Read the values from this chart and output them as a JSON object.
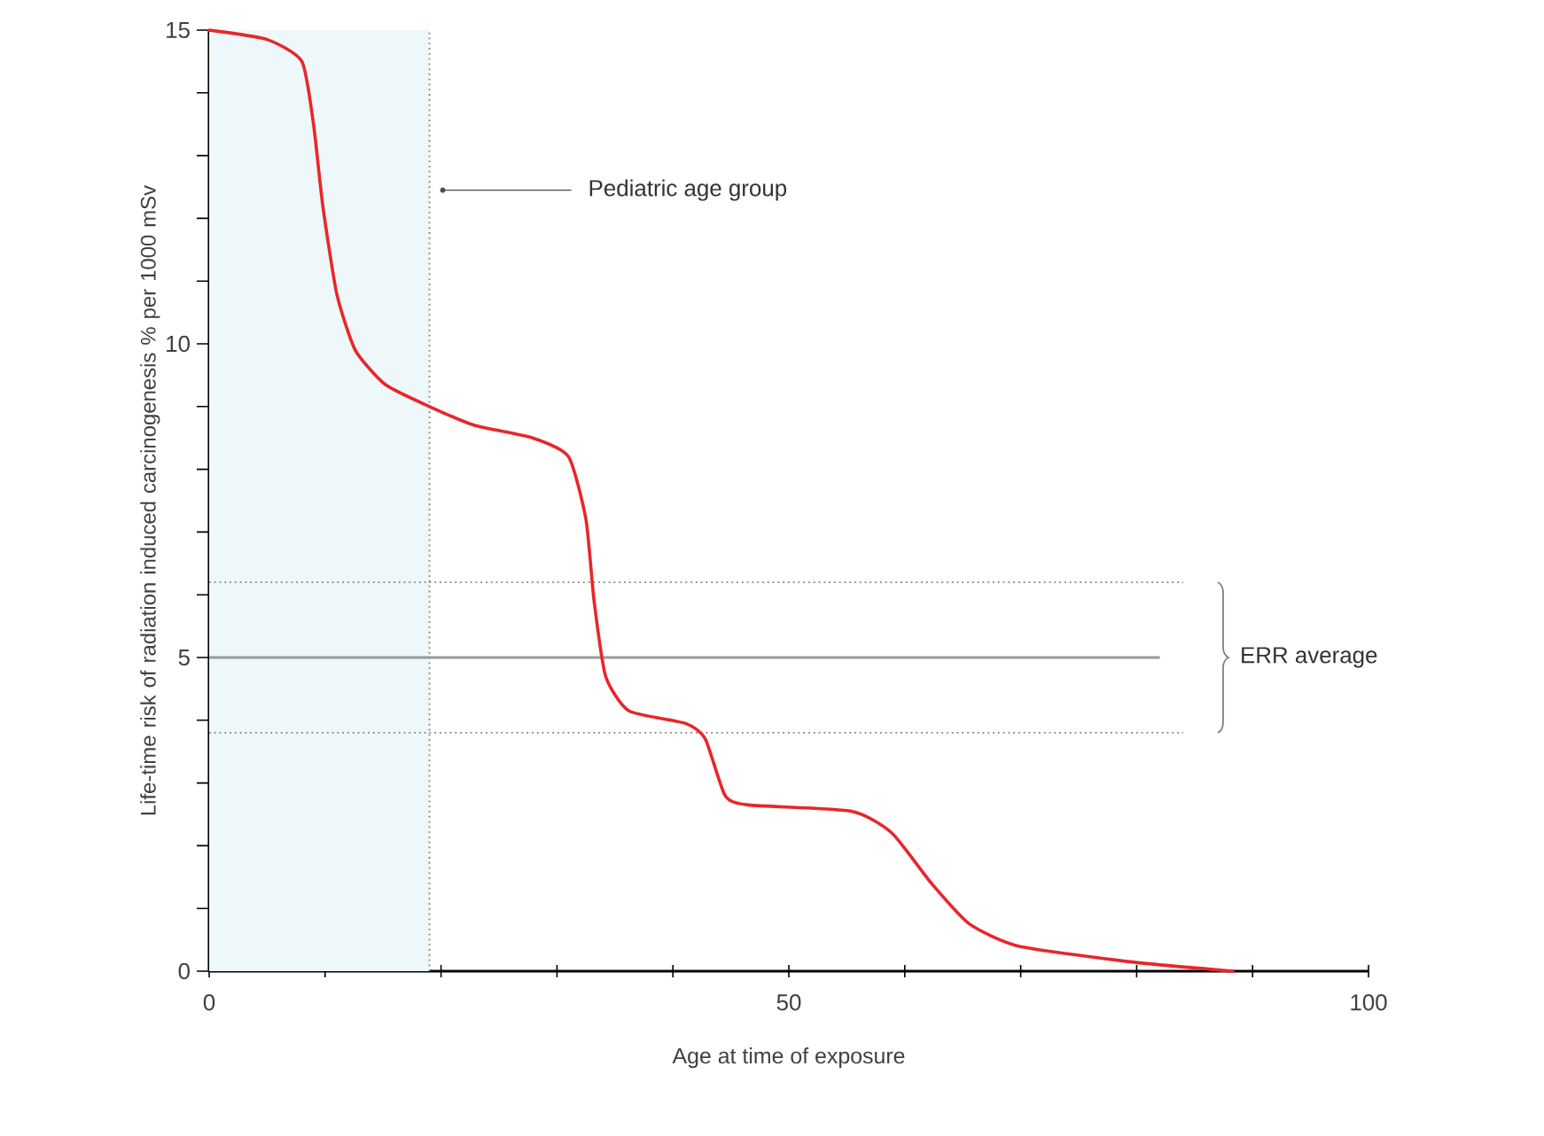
{
  "chart_data": {
    "type": "line",
    "xlabel": "Age at time of exposure",
    "ylabel": "Life-time risk of radiation induced carcinogenesis % per 1000 mSv",
    "x": [
      0,
      5,
      8,
      9,
      9.8,
      11,
      12.6,
      15.2,
      19,
      22.9,
      27.9,
      31,
      32.5,
      33.2,
      34.2,
      36.2,
      41.1,
      42.8,
      44.5,
      46.5,
      55.4,
      58.9,
      62.3,
      65.6,
      69.8,
      79.4,
      88.3
    ],
    "series": [
      {
        "color": "#e8262a",
        "values": [
          15,
          14.85,
          14.5,
          13.5,
          12.2,
          10.8,
          9.9,
          9.35,
          9.0,
          8.7,
          8.5,
          8.2,
          7.2,
          5.9,
          4.7,
          4.15,
          3.95,
          3.7,
          2.8,
          2.65,
          2.55,
          2.2,
          1.4,
          0.75,
          0.4,
          0.15,
          0
        ]
      }
    ],
    "xlim": [
      0,
      100
    ],
    "ylim": [
      0,
      15
    ],
    "xticks": [
      0,
      {
        "value": 10,
        "label": null
      },
      {
        "value": 20,
        "label": null
      },
      {
        "value": 30,
        "label": null
      },
      {
        "value": 40,
        "label": null
      },
      50,
      {
        "value": 60,
        "label": null
      },
      {
        "value": 70,
        "label": null
      },
      {
        "value": 80,
        "label": null
      },
      {
        "value": 90,
        "label": null
      },
      100
    ],
    "yticks": [
      0,
      {
        "value": 1,
        "label": null
      },
      {
        "value": 2,
        "label": null
      },
      {
        "value": 3,
        "label": null
      },
      {
        "value": 4,
        "label": null
      },
      5,
      {
        "value": 6,
        "label": null
      },
      {
        "value": 7,
        "label": null
      },
      {
        "value": 8,
        "label": null
      },
      {
        "value": 9,
        "label": null
      },
      10,
      {
        "value": 11,
        "label": null
      },
      {
        "value": 12,
        "label": null
      },
      {
        "value": 13,
        "label": null
      },
      {
        "value": 14,
        "label": null
      },
      15
    ],
    "annotations": [
      "ERR average"
    ],
    "bands": [
      {
        "axis": "x",
        "from": 0,
        "to": 19,
        "label": "Pediatric age group",
        "color": "#eef7fa"
      }
    ],
    "ref_lines": [
      {
        "axis": "x",
        "value": 19,
        "color": "#808080",
        "line_style": "dotted"
      },
      {
        "axis": "y",
        "value": 6.2,
        "color": "#808080",
        "line_style": "dotted"
      },
      {
        "axis": "y",
        "value": 5,
        "color": "#9a9a9a"
      },
      {
        "axis": "y",
        "value": 3.8,
        "color": "#808080",
        "line_style": "dotted"
      }
    ]
  }
}
